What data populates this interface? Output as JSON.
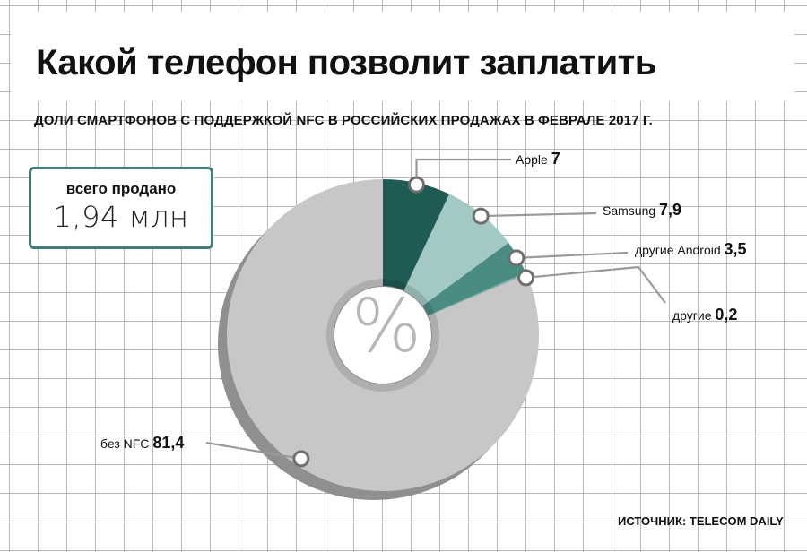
{
  "title": "Какой телефон позволит заплатить",
  "subtitle": "ДОЛИ СМАРТФОНОВ С ПОДДЕРЖКОЙ NFC В РОССИЙСКИХ ПРОДАЖАХ В ФЕВРАЛЕ 2017 Г.",
  "total": {
    "label": "всего продано",
    "value": "1,94 млн"
  },
  "center_symbol": "%",
  "source": "ИСТОЧНИК: TELECOM DAILY",
  "chart_data": {
    "type": "pie",
    "style": "donut",
    "grid": true,
    "slices": [
      {
        "name": "Apple",
        "value": 7,
        "label": "7",
        "color": "#1f5a55"
      },
      {
        "name": "Samsung",
        "value": 7.9,
        "label": "7,9",
        "color": "#a3c9c4"
      },
      {
        "name": "другие Android",
        "value": 3.5,
        "label": "3,5",
        "color": "#4a8c84"
      },
      {
        "name": "другие",
        "value": 0.2,
        "label": "0,2",
        "color": "#7fb0aa"
      },
      {
        "name": "без NFC",
        "value": 81.4,
        "label": "81,4",
        "color": "#c7c7c7"
      }
    ]
  },
  "colors": {
    "accent": "#3f7d76",
    "grid": "#b9b9b9",
    "shadow": "#8f8f8f"
  }
}
